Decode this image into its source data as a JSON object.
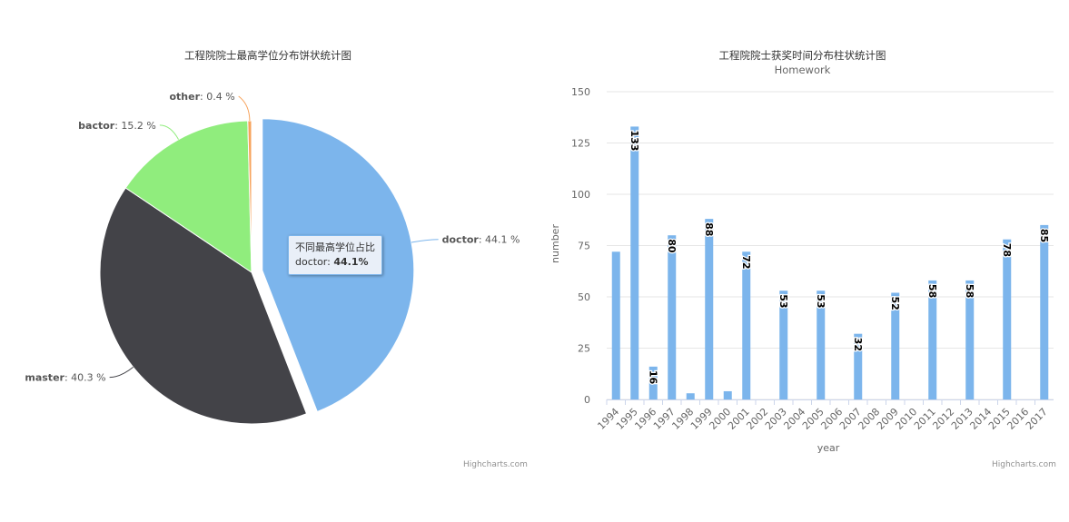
{
  "chart_data": [
    {
      "type": "pie",
      "title": "工程院院士最高学位分布饼状统计图",
      "credits": "Highcharts.com",
      "slices": [
        {
          "name": "doctor",
          "value": 44.1,
          "label": "44.1 %",
          "color": "#7cb5ec",
          "sliced": true
        },
        {
          "name": "master",
          "value": 40.3,
          "label": "40.3 %",
          "color": "#434348"
        },
        {
          "name": "bactor",
          "value": 15.2,
          "label": "15.2 %",
          "color": "#90ed7d"
        },
        {
          "name": "other",
          "value": 0.4,
          "label": "0.4 %",
          "color": "#f7a35c"
        }
      ],
      "tooltip": {
        "title": "不同最高学位占比",
        "series": "doctor",
        "value": "44.1%"
      }
    },
    {
      "type": "bar",
      "title": "工程院院士获奖时间分布柱状统计图",
      "subtitle": "Homework",
      "credits": "Highcharts.com",
      "xlabel": "year",
      "ylabel": "number",
      "ylim": [
        0,
        150
      ],
      "yticks": [
        "0",
        "25",
        "50",
        "75",
        "100",
        "125",
        "150"
      ],
      "grid": true,
      "color": "#7cb5ec",
      "categories": [
        "1994",
        "1995",
        "1996",
        "1997",
        "1998",
        "1999",
        "2000",
        "2001",
        "2002",
        "2003",
        "2004",
        "2005",
        "2006",
        "2007",
        "2008",
        "2009",
        "2010",
        "2011",
        "2012",
        "2013",
        "2014",
        "2015",
        "2016",
        "2017"
      ],
      "values": [
        72,
        133,
        16,
        80,
        3,
        88,
        4,
        72,
        0,
        53,
        0,
        53,
        0,
        32,
        0,
        52,
        0,
        58,
        0,
        58,
        0,
        78,
        0,
        85
      ],
      "data_labels": [
        "",
        "133",
        "16",
        "80",
        "",
        "88",
        "",
        "72",
        "",
        "53",
        "",
        "53",
        "",
        "32",
        "",
        "52",
        "",
        "58",
        "",
        "58",
        "",
        "78",
        "",
        "85"
      ]
    }
  ]
}
